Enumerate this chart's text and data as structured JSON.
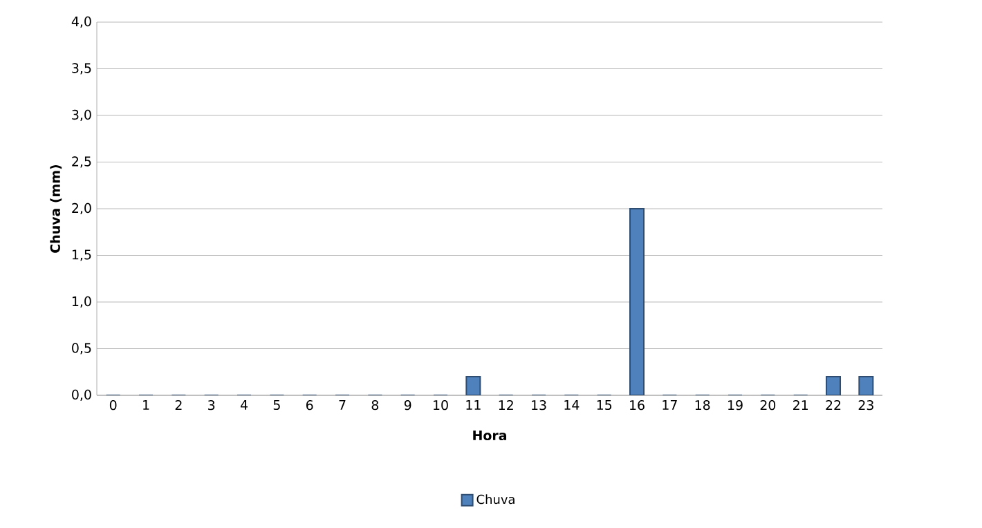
{
  "chart_data": {
    "type": "bar",
    "xlabel": "Hora",
    "ylabel": "Chuva (mm)",
    "categories": [
      "0",
      "1",
      "2",
      "3",
      "4",
      "5",
      "6",
      "7",
      "8",
      "9",
      "10",
      "11",
      "12",
      "13",
      "14",
      "15",
      "16",
      "17",
      "18",
      "19",
      "20",
      "21",
      "22",
      "23"
    ],
    "series": [
      {
        "name": "Chuva",
        "color": "#4f81bd",
        "values": [
          0,
          0,
          0,
          0,
          0,
          0,
          0,
          0,
          0,
          0,
          0,
          0.2,
          0,
          0,
          0,
          0,
          2.0,
          0,
          0,
          0,
          0,
          0,
          0.2,
          0.2
        ]
      }
    ],
    "ylim": [
      0,
      4
    ],
    "yticks": [
      {
        "value": 0,
        "label": "0,0"
      },
      {
        "value": 0.5,
        "label": "0,5"
      },
      {
        "value": 1,
        "label": "1,0"
      },
      {
        "value": 1.5,
        "label": "1,5"
      },
      {
        "value": 2,
        "label": "2,0"
      },
      {
        "value": 2.5,
        "label": "2,5"
      },
      {
        "value": 3,
        "label": "3,0"
      },
      {
        "value": 3.5,
        "label": "3,5"
      },
      {
        "value": 4,
        "label": "4,0"
      }
    ],
    "grid": "y",
    "legend": "bottom"
  }
}
